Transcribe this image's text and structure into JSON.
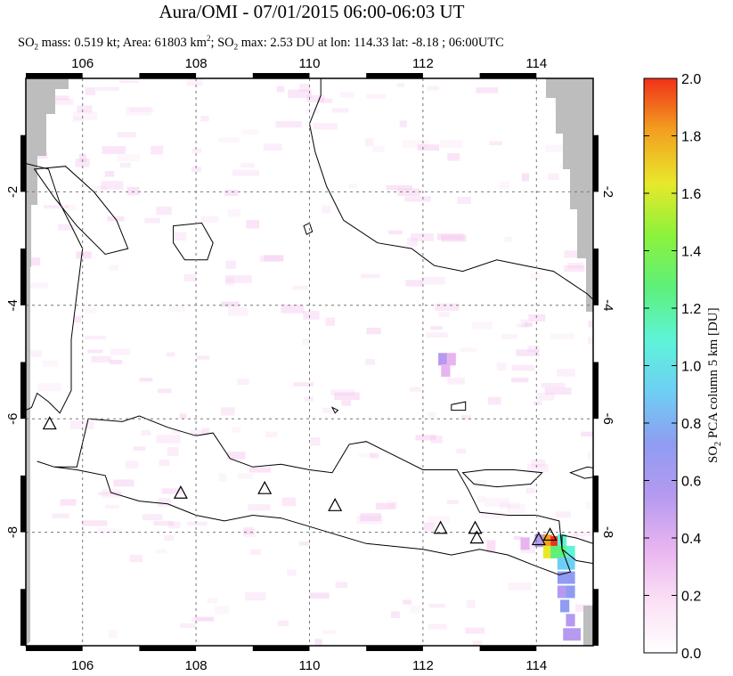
{
  "title": "Aura/OMI - 07/01/2015 06:00-06:03 UT",
  "subtitle": {
    "part1": "SO",
    "sub1": "2",
    "part2": " mass: 0.519 kt; Area: 61803 km",
    "sup1": "2",
    "part3": "; SO",
    "sub2": "2",
    "part4": " max: 2.53 DU at lon: 114.33 lat: -8.18 ; 06:00UTC"
  },
  "colorbar": {
    "label_prefix": "SO",
    "label_sub": "2",
    "label_suffix": " PCA column 5 km [DU]",
    "ticks": [
      "0.0",
      "0.2",
      "0.4",
      "0.6",
      "0.8",
      "1.0",
      "1.2",
      "1.4",
      "1.6",
      "1.8",
      "2.0"
    ],
    "colors": [
      "#ffffff",
      "#fbe0f5",
      "#e8b4f0",
      "#b59af0",
      "#8f9cf2",
      "#6ecff4",
      "#5ef4d8",
      "#5ef07a",
      "#8cf23c",
      "#e8e82a",
      "#f2a020",
      "#f03218"
    ]
  },
  "chart_data": {
    "type": "heatmap",
    "map": "Java, Indonesia",
    "xlim": [
      105,
      115
    ],
    "ylim": [
      -10,
      0
    ],
    "x_ticks": [
      "106",
      "108",
      "110",
      "112",
      "114"
    ],
    "y_ticks": [
      "-2",
      "-4",
      "-6",
      "-8"
    ],
    "grid": true,
    "color_range": [
      0.0,
      2.0
    ],
    "so2_max": {
      "value": 2.53,
      "lon": 114.33,
      "lat": -8.18
    },
    "volcanoes": [
      {
        "lon": 105.42,
        "lat": -6.1
      },
      {
        "lon": 107.73,
        "lat": -7.32
      },
      {
        "lon": 109.21,
        "lat": -7.24
      },
      {
        "lon": 110.45,
        "lat": -7.54
      },
      {
        "lon": 112.31,
        "lat": -7.94
      },
      {
        "lon": 112.92,
        "lat": -7.94
      },
      {
        "lon": 112.95,
        "lat": -8.11
      },
      {
        "lon": 114.04,
        "lat": -8.14
      },
      {
        "lon": 114.24,
        "lat": -8.06
      }
    ],
    "plume_cells": [
      {
        "lon": 114.05,
        "lat": -8.15,
        "v": 0.5
      },
      {
        "lon": 114.2,
        "lat": -8.15,
        "v": 1.9
      },
      {
        "lon": 114.33,
        "lat": -8.18,
        "v": 2.0
      },
      {
        "lon": 114.45,
        "lat": -8.15,
        "v": 1.0
      },
      {
        "lon": 114.2,
        "lat": -8.35,
        "v": 1.6
      },
      {
        "lon": 114.33,
        "lat": -8.35,
        "v": 1.3
      },
      {
        "lon": 114.45,
        "lat": -8.35,
        "v": 1.2
      },
      {
        "lon": 114.6,
        "lat": -8.35,
        "v": 1.0
      },
      {
        "lon": 114.45,
        "lat": -8.55,
        "v": 0.9
      },
      {
        "lon": 114.6,
        "lat": -8.55,
        "v": 0.85
      },
      {
        "lon": 114.45,
        "lat": -8.8,
        "v": 0.7
      },
      {
        "lon": 114.6,
        "lat": -8.8,
        "v": 0.75
      },
      {
        "lon": 114.45,
        "lat": -9.05,
        "v": 0.6
      },
      {
        "lon": 114.6,
        "lat": -9.05,
        "v": 0.7
      },
      {
        "lon": 114.5,
        "lat": -9.3,
        "v": 0.65
      },
      {
        "lon": 114.6,
        "lat": -9.55,
        "v": 0.6
      },
      {
        "lon": 114.55,
        "lat": -9.8,
        "v": 0.55
      },
      {
        "lon": 114.7,
        "lat": -9.8,
        "v": 0.6
      },
      {
        "lon": 113.8,
        "lat": -8.2,
        "v": 0.3
      },
      {
        "lon": 113.2,
        "lat": -8.25,
        "v": 0.2
      },
      {
        "lon": 112.35,
        "lat": -4.95,
        "v": 0.5
      },
      {
        "lon": 112.5,
        "lat": -4.95,
        "v": 0.45
      },
      {
        "lon": 112.4,
        "lat": -5.15,
        "v": 0.35
      }
    ]
  }
}
